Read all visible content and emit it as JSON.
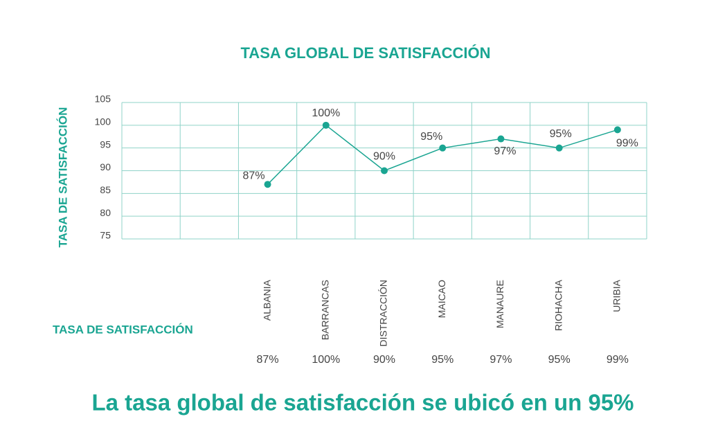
{
  "chart_data": {
    "type": "line",
    "title": "TASA GLOBAL DE SATISFACCIÓN",
    "y_label": "TASA DE SATISFACCIÓN",
    "table_label": "TASA DE SATISFACCIÓN",
    "annotation": "La tasa global de satisfacción se ubicó en un 95%",
    "categories": [
      null,
      null,
      "ALBANIA",
      "BARRANCAS",
      "DISTRACCIÓN",
      "MAICAO",
      "MANAURE",
      "RIOHACHA",
      "URIBIA"
    ],
    "values": [
      null,
      null,
      87,
      100,
      90,
      95,
      97,
      95,
      99
    ],
    "value_labels": [
      null,
      null,
      "87%",
      "100%",
      "90%",
      "95%",
      "97%",
      "95%",
      "99%"
    ],
    "color": "#1aa592",
    "ylim": [
      75,
      105
    ],
    "yticks": [
      75,
      80,
      85,
      90,
      95,
      100,
      105
    ],
    "grid": true
  }
}
